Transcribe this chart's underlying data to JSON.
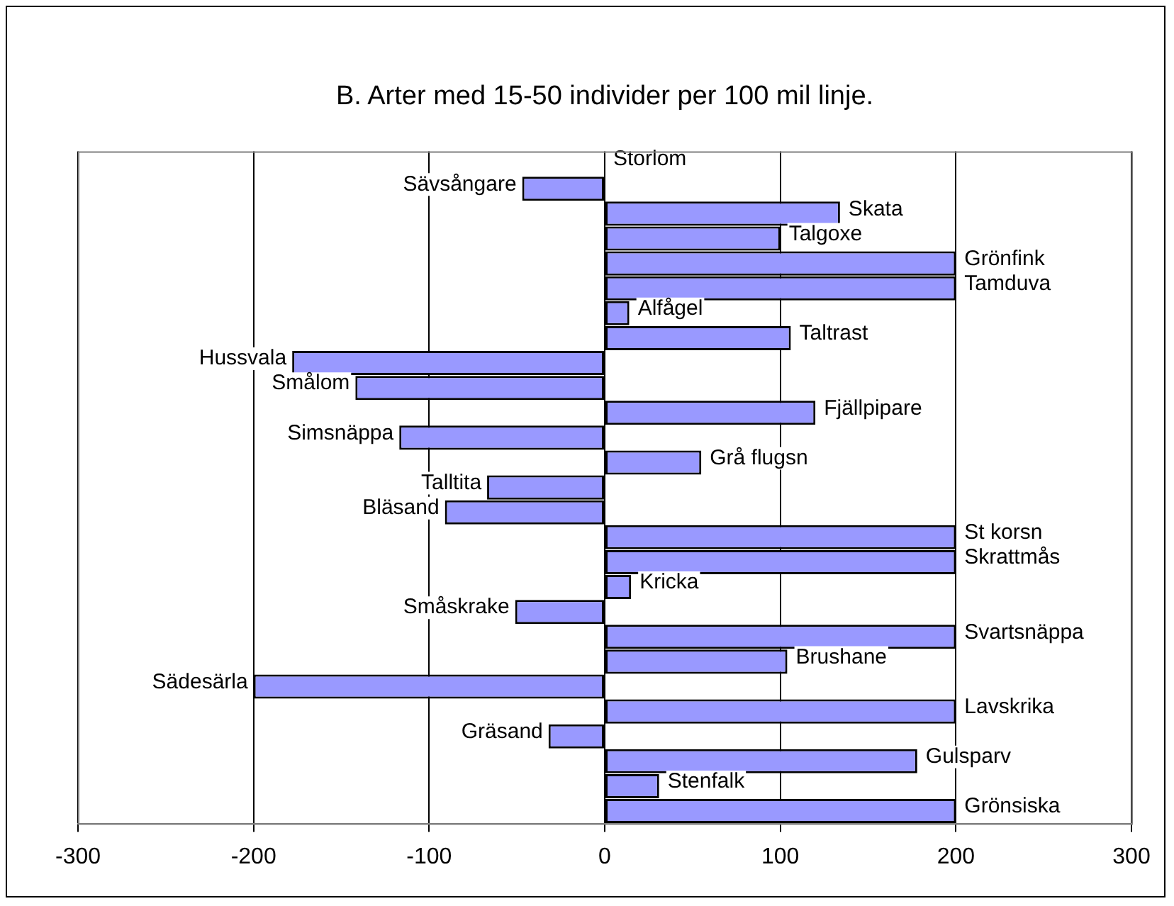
{
  "chart_data": {
    "type": "bar",
    "orientation": "horizontal",
    "title": "B. Arter med 15-50 individer per 100 mil linje.",
    "categories": [
      "Storlom",
      "Sävsångare",
      "Skata",
      "Talgoxe",
      "Grönfink",
      "Tamduva",
      "Alfågel",
      "Taltrast",
      "Hussvala",
      "Smålom",
      "Fjällpipare",
      "Simsnäppa",
      "Grå flugsn",
      "Talltita",
      "Bläsand",
      "St korsn",
      "Skrattmås",
      "Kricka",
      "Småskrake",
      "Svartsnäppa",
      "Brushane",
      "Sädesärla",
      "Lavskrika",
      "Gräsand",
      "Gulsparv",
      "Stenfalk",
      "Grönsiska"
    ],
    "values": [
      0,
      -47,
      134,
      100,
      200,
      200,
      14,
      106,
      -178,
      -142,
      120,
      -117,
      55,
      -67,
      -91,
      200,
      200,
      15,
      -51,
      200,
      104,
      -200,
      200,
      -32,
      178,
      31,
      200
    ],
    "color": "#9999ff",
    "xlim": [
      -300,
      300
    ],
    "xticks": [
      -300,
      -200,
      -100,
      0,
      100,
      200,
      300
    ],
    "grid": "x",
    "legend": false
  }
}
